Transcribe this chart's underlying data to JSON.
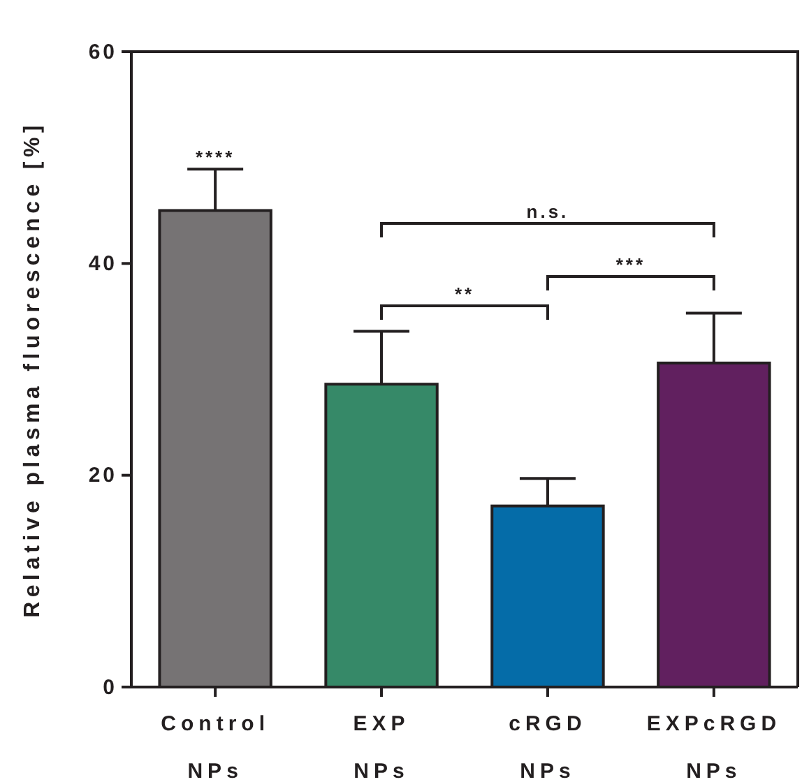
{
  "chart_data": {
    "type": "bar",
    "ylabel": "Relative plasma fluorescence [%]",
    "categories": [
      "Control NPs",
      "EXP NPs",
      "cRGD NPs",
      "EXPcRGD NPs"
    ],
    "values": [
      45.0,
      28.6,
      17.1,
      30.6
    ],
    "colors": [
      "#767374",
      "#368968",
      "#056ca8",
      "#61205f"
    ],
    "errors": [
      [
        45.0,
        48.9
      ],
      [
        28.6,
        33.6
      ],
      [
        17.1,
        19.7
      ],
      [
        30.6,
        35.3
      ]
    ],
    "ylim": [
      0,
      60
    ],
    "yticks": [
      0,
      20,
      40,
      60
    ],
    "annotations": [
      "****",
      "**",
      "***",
      "n.s."
    ]
  }
}
